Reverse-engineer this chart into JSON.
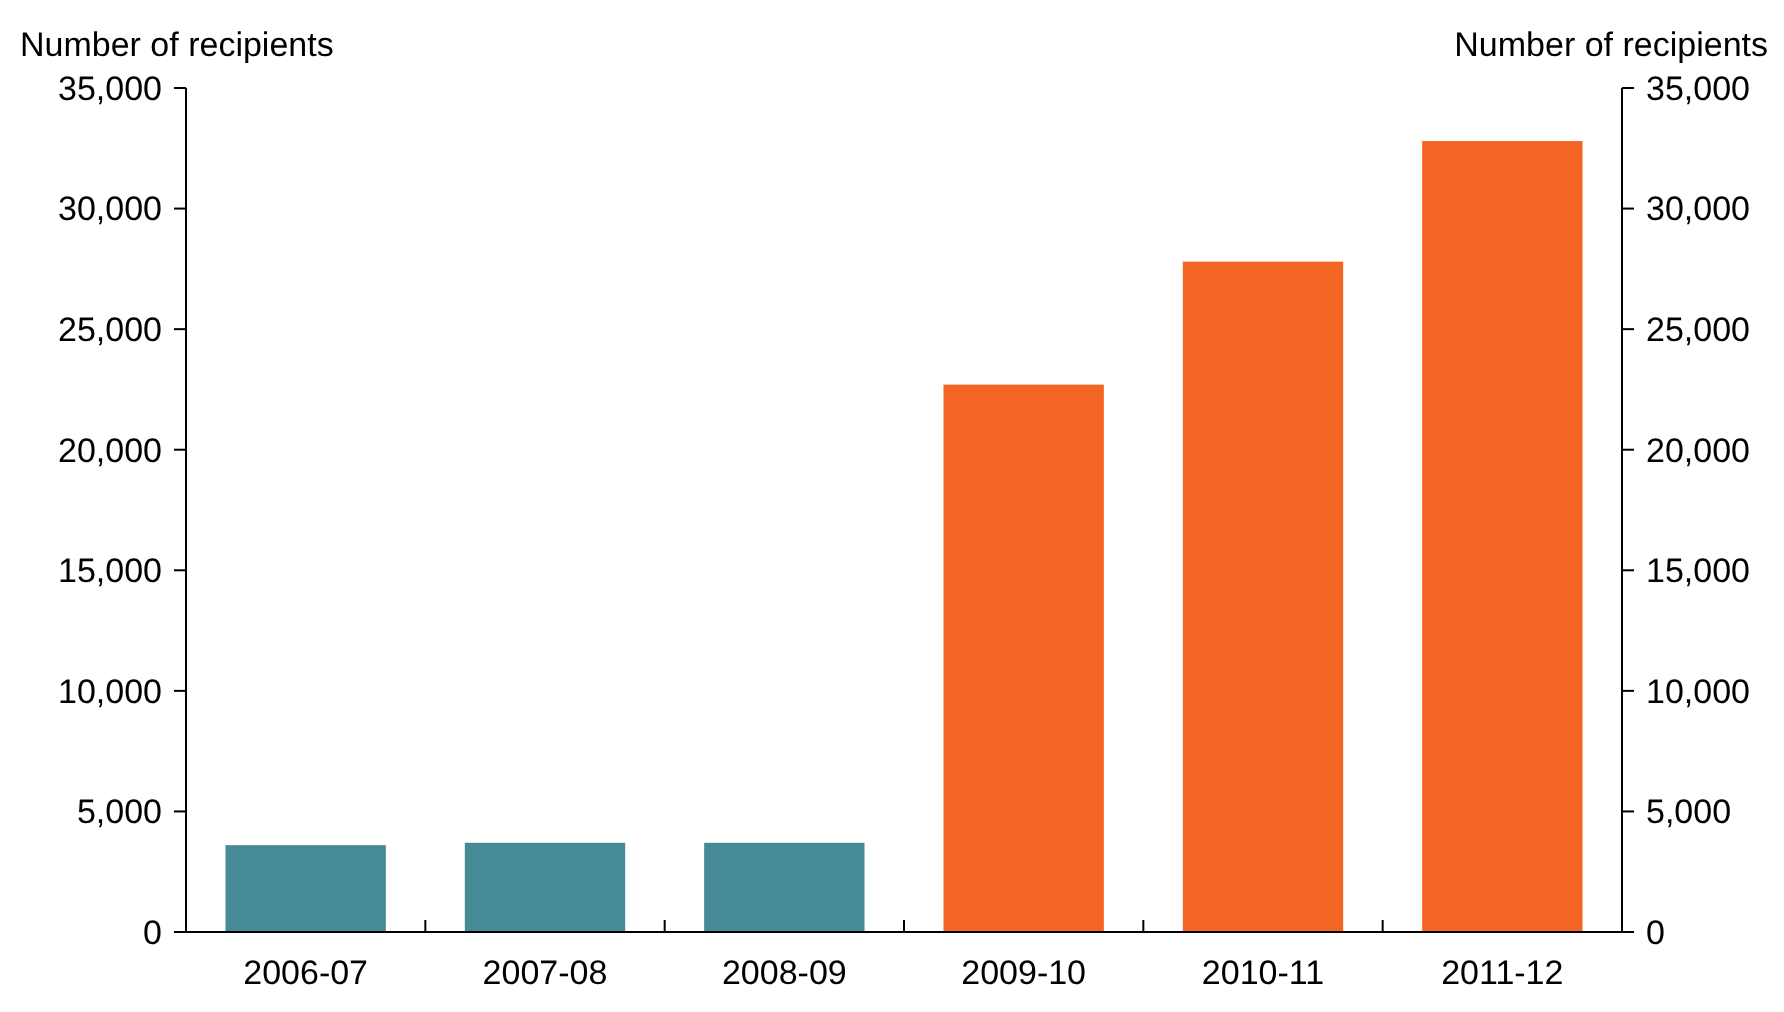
{
  "chart_data": {
    "type": "bar",
    "ylabel": "Number of recipients",
    "y2label": "Number of recipients",
    "categories": [
      "2006-07",
      "2007-08",
      "2008-09",
      "2009-10",
      "2010-11",
      "2011-12"
    ],
    "values": [
      3600,
      3700,
      3700,
      22700,
      27800,
      32800
    ],
    "colors": [
      "#468a96",
      "#468a96",
      "#468a96",
      "#f26522",
      "#f26522",
      "#f26522"
    ],
    "ylim": [
      0,
      35000
    ],
    "yticks": [
      {
        "value": 0,
        "label": "0"
      },
      {
        "value": 5000,
        "label": "5,000"
      },
      {
        "value": 10000,
        "label": "10,000"
      },
      {
        "value": 15000,
        "label": "15,000"
      },
      {
        "value": 20000,
        "label": "20,000"
      },
      {
        "value": 25000,
        "label": "25,000"
      },
      {
        "value": 30000,
        "label": "30,000"
      },
      {
        "value": 35000,
        "label": "35,000"
      }
    ],
    "y2lim": [
      0,
      35000
    ],
    "y2ticks": [
      {
        "value": 0,
        "label": "0"
      },
      {
        "value": 5000,
        "label": "5,000"
      },
      {
        "value": 10000,
        "label": "10,000"
      },
      {
        "value": 15000,
        "label": "15,000"
      },
      {
        "value": 20000,
        "label": "20,000"
      },
      {
        "value": 25000,
        "label": "25,000"
      },
      {
        "value": 30000,
        "label": "30,000"
      },
      {
        "value": 35000,
        "label": "35,000"
      }
    ],
    "grid": false
  }
}
